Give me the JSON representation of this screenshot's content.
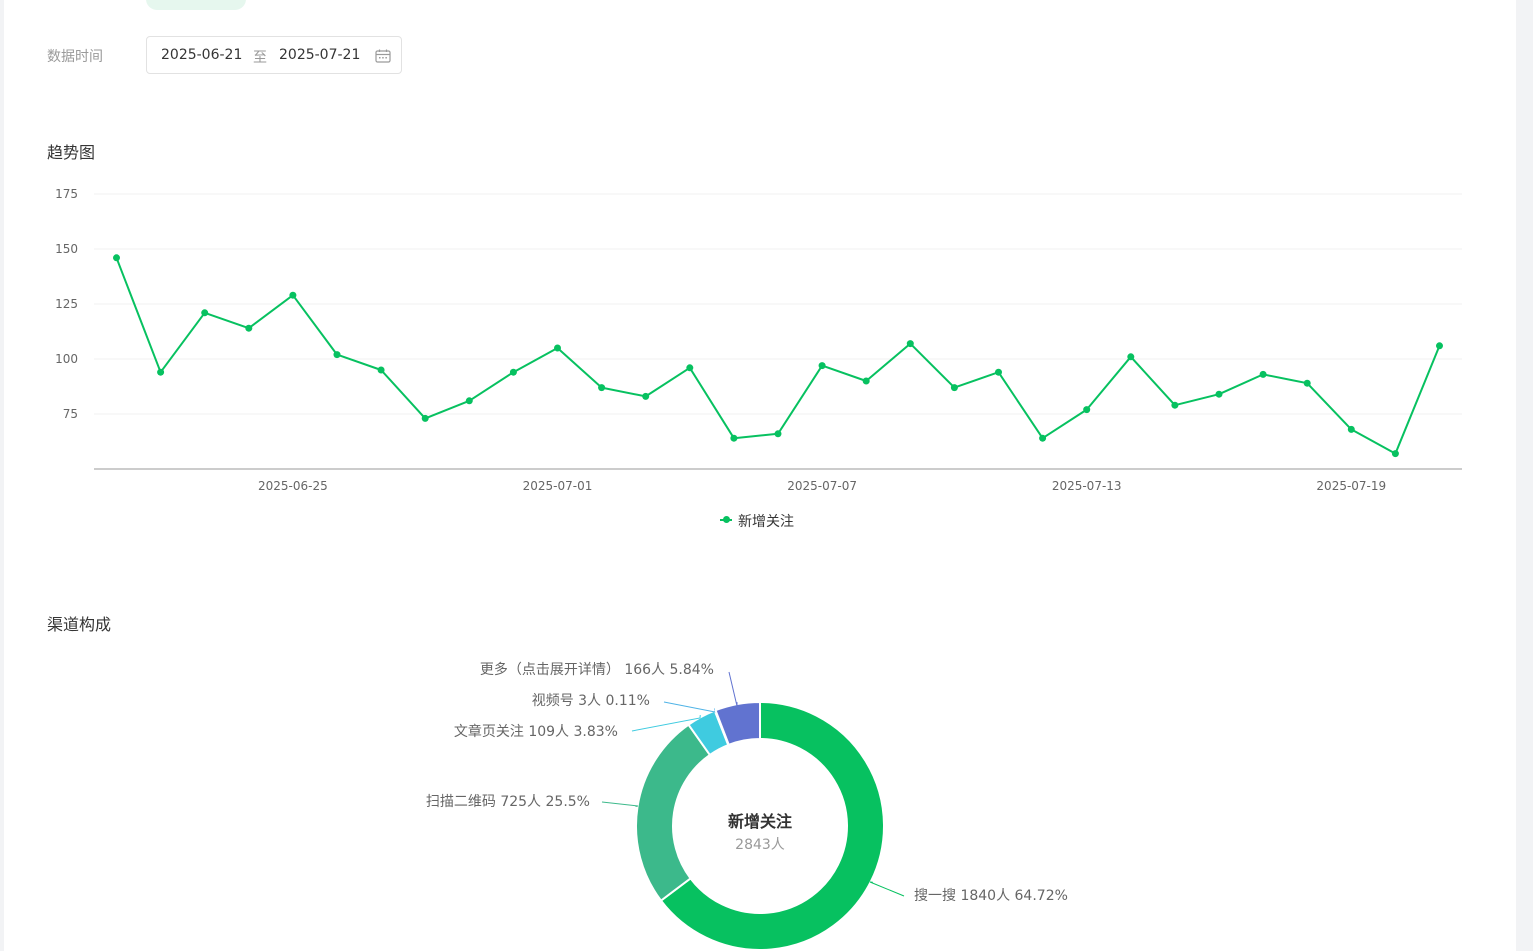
{
  "filters": {
    "time_label": "数据时间",
    "start_date": "2025-06-21",
    "separator": "至",
    "end_date": "2025-07-21"
  },
  "sections": {
    "trend_title": "趋势图",
    "channel_title": "渠道构成"
  },
  "colors": {
    "accent": "#07c160",
    "grid": "#f0f0f0",
    "axis": "#cccccc"
  },
  "icons": {
    "calendar": "calendar-icon"
  },
  "chart_data": [
    {
      "type": "line",
      "x": [
        "2025-06-21",
        "2025-06-22",
        "2025-06-23",
        "2025-06-24",
        "2025-06-25",
        "2025-06-26",
        "2025-06-27",
        "2025-06-28",
        "2025-06-29",
        "2025-06-30",
        "2025-07-01",
        "2025-07-02",
        "2025-07-03",
        "2025-07-04",
        "2025-07-05",
        "2025-07-06",
        "2025-07-07",
        "2025-07-08",
        "2025-07-09",
        "2025-07-10",
        "2025-07-11",
        "2025-07-12",
        "2025-07-13",
        "2025-07-14",
        "2025-07-15",
        "2025-07-16",
        "2025-07-17",
        "2025-07-18",
        "2025-07-19",
        "2025-07-20",
        "2025-07-21"
      ],
      "x_ticks": [
        "2025-06-25",
        "2025-07-01",
        "2025-07-07",
        "2025-07-13",
        "2025-07-19"
      ],
      "y_ticks": [
        75,
        100,
        125,
        150,
        175
      ],
      "ylim": [
        50,
        175
      ],
      "series": [
        {
          "name": "新增关注",
          "color": "#07c160",
          "values": [
            146,
            94,
            121,
            114,
            129,
            102,
            95,
            73,
            81,
            94,
            105,
            87,
            83,
            96,
            64,
            66,
            97,
            90,
            107,
            87,
            94,
            64,
            77,
            101,
            79,
            84,
            93,
            89,
            68,
            57,
            106
          ]
        }
      ],
      "legend": "bottom-center",
      "grid": true
    },
    {
      "type": "pie",
      "center_title": "新增关注",
      "center_value": "2843人",
      "slices": [
        {
          "name": "搜一搜",
          "count": 1840,
          "count_label": "1840人",
          "percent": 64.72,
          "label": "搜一搜 1840人 64.72%",
          "color": "#07c160"
        },
        {
          "name": "扫描二维码",
          "count": 725,
          "count_label": "725人",
          "percent": 25.5,
          "label": "扫描二维码 725人 25.5%",
          "color": "#3cb98b"
        },
        {
          "name": "文章页关注",
          "count": 109,
          "count_label": "109人",
          "percent": 3.83,
          "label": "文章页关注 109人 3.83%",
          "color": "#3fcbe0"
        },
        {
          "name": "视频号",
          "count": 3,
          "count_label": "3人",
          "percent": 0.11,
          "label": "视频号 3人 0.11%",
          "color": "#4fb3e6"
        },
        {
          "name": "更多（点击展开详情）",
          "count": 166,
          "count_label": "166人",
          "percent": 5.84,
          "label": "更多（点击展开详情） 166人 5.84%",
          "color": "#6173d0"
        }
      ]
    }
  ]
}
